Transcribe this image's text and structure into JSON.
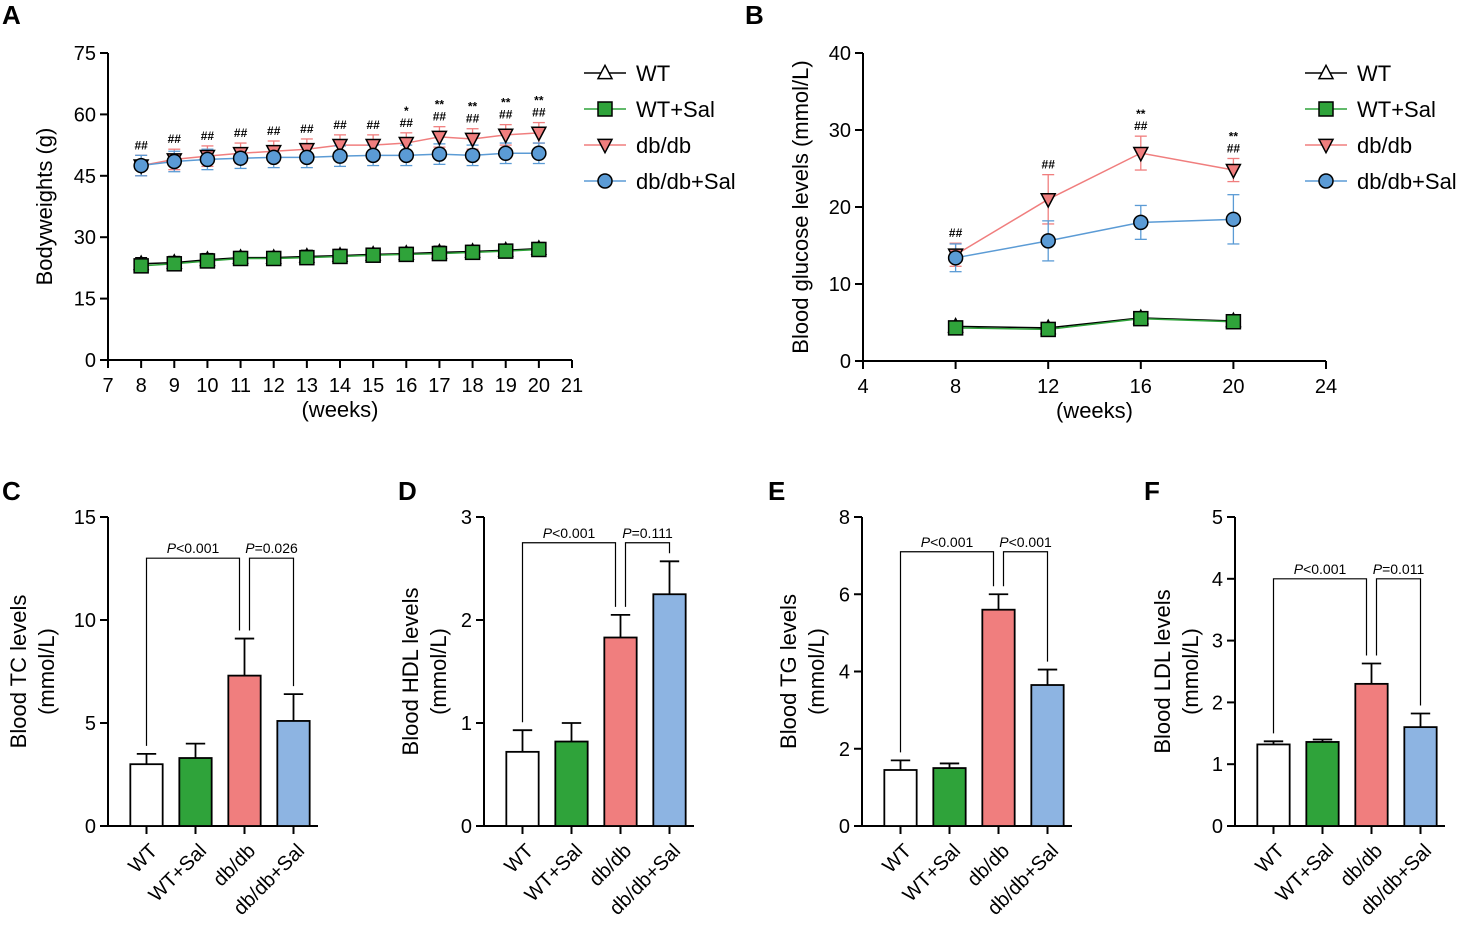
{
  "colors": {
    "WT": "#ffffff",
    "WT+Sal": "#2fa33a",
    "db/db": "#f07e7e",
    "db/db+Sal": "#5b9bd5",
    "dbLine": "#f07e7e",
    "dbSalLine": "#5b9bd5",
    "wtLine": "#000000",
    "wtSalLine": "#2fa33a",
    "barWT": "#ffffff",
    "barWTSal": "#2fa33a",
    "barDb": "#f07e7e",
    "barDbSal": "#8db4e2"
  },
  "panels": {
    "A": {
      "letter": "A"
    },
    "B": {
      "letter": "B"
    },
    "C": {
      "letter": "C"
    },
    "D": {
      "letter": "D"
    },
    "E": {
      "letter": "E"
    },
    "F": {
      "letter": "F"
    }
  },
  "chart_data": [
    {
      "id": "A",
      "type": "line",
      "ylabel": "Bodyweights (g)",
      "xlabel": "(weeks)",
      "xlim": [
        7,
        21
      ],
      "ylim": [
        0,
        75
      ],
      "xticks": [
        7,
        8,
        9,
        10,
        11,
        12,
        13,
        14,
        15,
        16,
        17,
        18,
        19,
        20,
        21
      ],
      "yticks": [
        0,
        15,
        30,
        45,
        60,
        75
      ],
      "x": [
        8,
        9,
        10,
        11,
        12,
        13,
        14,
        15,
        16,
        17,
        18,
        19,
        20
      ],
      "series": [
        {
          "name": "WT",
          "marker": "triangle-up",
          "values": [
            23.5,
            23.8,
            24.5,
            25.0,
            25.0,
            25.3,
            25.5,
            25.8,
            26.0,
            26.3,
            26.5,
            26.8,
            27.2
          ],
          "err": [
            1.5,
            1.5,
            1.5,
            1.5,
            1.5,
            1.5,
            1.5,
            1.5,
            1.5,
            1.5,
            1.5,
            1.5,
            1.5
          ]
        },
        {
          "name": "WT+Sal",
          "marker": "square",
          "values": [
            23.0,
            23.5,
            24.2,
            24.8,
            24.8,
            25.0,
            25.3,
            25.6,
            25.8,
            26.0,
            26.3,
            26.6,
            27.0
          ],
          "err": [
            1.5,
            1.5,
            1.5,
            1.5,
            1.5,
            1.5,
            1.5,
            1.5,
            1.5,
            1.5,
            1.5,
            1.5,
            1.5
          ]
        },
        {
          "name": "db/db",
          "marker": "triangle-down",
          "values": [
            47.5,
            49.0,
            49.8,
            50.5,
            51.0,
            51.5,
            52.5,
            52.5,
            53.0,
            54.5,
            54.0,
            55.0,
            55.5
          ],
          "err": [
            2.5,
            2.5,
            2.5,
            2.5,
            2.5,
            2.5,
            2.5,
            2.5,
            2.5,
            2.5,
            2.5,
            2.5,
            2.5
          ]
        },
        {
          "name": "db/db+Sal",
          "marker": "circle",
          "values": [
            47.5,
            48.5,
            49.0,
            49.3,
            49.5,
            49.5,
            49.8,
            50.0,
            50.0,
            50.3,
            50.0,
            50.5,
            50.5
          ],
          "err": [
            2.5,
            2.5,
            2.5,
            2.5,
            2.5,
            2.5,
            2.5,
            2.5,
            2.5,
            2.5,
            2.5,
            2.5,
            2.5
          ]
        }
      ],
      "annotations": [
        {
          "x": 8,
          "lines": [
            "##"
          ]
        },
        {
          "x": 9,
          "lines": [
            "##"
          ]
        },
        {
          "x": 10,
          "lines": [
            "##"
          ]
        },
        {
          "x": 11,
          "lines": [
            "##"
          ]
        },
        {
          "x": 12,
          "lines": [
            "##"
          ]
        },
        {
          "x": 13,
          "lines": [
            "##"
          ]
        },
        {
          "x": 14,
          "lines": [
            "##"
          ]
        },
        {
          "x": 15,
          "lines": [
            "##"
          ]
        },
        {
          "x": 16,
          "lines": [
            "*",
            "##"
          ]
        },
        {
          "x": 17,
          "lines": [
            "**",
            "##"
          ]
        },
        {
          "x": 18,
          "lines": [
            "**",
            "##"
          ]
        },
        {
          "x": 19,
          "lines": [
            "**",
            "##"
          ]
        },
        {
          "x": 20,
          "lines": [
            "**",
            "##"
          ]
        }
      ],
      "legend": [
        "WT",
        "WT+Sal",
        "db/db",
        "db/db+Sal"
      ]
    },
    {
      "id": "B",
      "type": "line",
      "ylabel": "Blood glucose levels (mmol/L)",
      "xlabel": "(weeks)",
      "xlim": [
        4,
        24
      ],
      "ylim": [
        0,
        40
      ],
      "xticks": [
        4,
        8,
        12,
        16,
        20,
        24
      ],
      "yticks": [
        0,
        10,
        20,
        30,
        40
      ],
      "x": [
        8,
        12,
        16,
        20
      ],
      "series": [
        {
          "name": "WT",
          "marker": "triangle-up",
          "values": [
            4.5,
            4.3,
            5.6,
            5.2
          ],
          "err": [
            0.6,
            0.6,
            0.6,
            0.6
          ]
        },
        {
          "name": "WT+Sal",
          "marker": "square",
          "values": [
            4.3,
            4.1,
            5.5,
            5.1
          ],
          "err": [
            0.6,
            0.6,
            0.6,
            0.6
          ]
        },
        {
          "name": "db/db",
          "marker": "triangle-down",
          "values": [
            13.8,
            21.0,
            27.0,
            24.8
          ],
          "err": [
            1.5,
            3.2,
            2.2,
            1.5
          ]
        },
        {
          "name": "db/db+Sal",
          "marker": "circle",
          "values": [
            13.4,
            15.6,
            18.0,
            18.4
          ],
          "err": [
            1.8,
            2.6,
            2.2,
            3.2
          ]
        }
      ],
      "annotations": [
        {
          "x": 8,
          "lines": [
            "##"
          ]
        },
        {
          "x": 12,
          "lines": [
            "##"
          ]
        },
        {
          "x": 16,
          "lines": [
            "**",
            "##"
          ]
        },
        {
          "x": 20,
          "lines": [
            "**",
            "##"
          ]
        }
      ],
      "legend": [
        "WT",
        "WT+Sal",
        "db/db",
        "db/db+Sal"
      ]
    },
    {
      "id": "C",
      "type": "bar",
      "ylabel": "Blood TC levels",
      "ylabel2": "(mmol/L)",
      "ylim": [
        0,
        15
      ],
      "yticks": [
        0,
        5,
        10,
        15
      ],
      "categories": [
        "WT",
        "WT+Sal",
        "db/db",
        "db/db+Sal"
      ],
      "values": [
        3.0,
        3.3,
        7.3,
        5.1
      ],
      "err": [
        0.5,
        0.7,
        1.8,
        1.3
      ],
      "comparisons": [
        {
          "from": 0,
          "to": 2,
          "italic": "P",
          "text": "<0.001",
          "level": 13.0
        },
        {
          "from": 2,
          "to": 3,
          "italic": "P",
          "text": "=0.026",
          "level": 13.0
        }
      ]
    },
    {
      "id": "D",
      "type": "bar",
      "ylabel": "Blood HDL levels",
      "ylabel2": "(mmol/L)",
      "ylim": [
        0,
        3
      ],
      "yticks": [
        0,
        1,
        2,
        3
      ],
      "categories": [
        "WT",
        "WT+Sal",
        "db/db",
        "db/db+Sal"
      ],
      "values": [
        0.72,
        0.82,
        1.83,
        2.25
      ],
      "err": [
        0.21,
        0.18,
        0.22,
        0.32
      ],
      "comparisons": [
        {
          "from": 0,
          "to": 2,
          "italic": "P",
          "text": "<0.001",
          "level": 2.75
        },
        {
          "from": 2,
          "to": 3,
          "italic": "P",
          "text": "=0.111",
          "level": 2.75
        }
      ]
    },
    {
      "id": "E",
      "type": "bar",
      "ylabel": "Blood TG levels",
      "ylabel2": "(mmol/L)",
      "ylim": [
        0,
        8
      ],
      "yticks": [
        0,
        2,
        4,
        6,
        8
      ],
      "categories": [
        "WT",
        "WT+Sal",
        "db/db",
        "db/db+Sal"
      ],
      "values": [
        1.45,
        1.5,
        5.6,
        3.65
      ],
      "err": [
        0.25,
        0.12,
        0.4,
        0.4
      ],
      "comparisons": [
        {
          "from": 0,
          "to": 2,
          "italic": "P",
          "text": "<0.001",
          "level": 7.1
        },
        {
          "from": 2,
          "to": 3,
          "italic": "P",
          "text": "<0.001",
          "level": 7.1
        }
      ]
    },
    {
      "id": "F",
      "type": "bar",
      "ylabel": "Blood LDL levels",
      "ylabel2": "(mmol/L)",
      "ylim": [
        0,
        5
      ],
      "yticks": [
        0,
        1,
        2,
        3,
        4,
        5
      ],
      "categories": [
        "WT",
        "WT+Sal",
        "db/db",
        "db/db+Sal"
      ],
      "values": [
        1.32,
        1.36,
        2.3,
        1.6
      ],
      "err": [
        0.05,
        0.04,
        0.33,
        0.22
      ],
      "comparisons": [
        {
          "from": 0,
          "to": 2,
          "italic": "P",
          "text": "<0.001",
          "level": 4.0
        },
        {
          "from": 2,
          "to": 3,
          "italic": "P",
          "text": "=0.011",
          "level": 4.0
        }
      ]
    }
  ]
}
